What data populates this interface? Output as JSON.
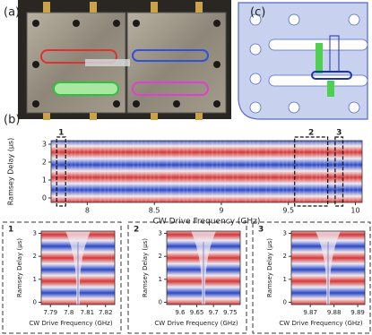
{
  "panels": {
    "a": "(a)",
    "b": "(b)",
    "c": "(c)"
  },
  "chart_data": [
    {
      "type": "heatmap",
      "xlabel": "CW Drive Frequency (GHz)",
      "ylabel": "Ramsey Delay (μs)",
      "xlim": [
        7.73,
        10.05
      ],
      "xticks": [
        8,
        8.5,
        9,
        9.5,
        10
      ],
      "ylim": [
        -0.25,
        3.2
      ],
      "yticks": [
        0,
        1,
        2,
        3
      ]
    },
    {
      "type": "heatmap",
      "label": "1",
      "xlabel": "CW Drive Frequency (GHz)",
      "ylabel": "Ramsey Delay (μs)",
      "xlim": [
        7.785,
        7.825
      ],
      "xticks": [
        7.79,
        7.8,
        7.81,
        7.82
      ],
      "ylim": [
        -0.1,
        3.1
      ],
      "yticks": [
        0,
        1,
        2,
        3
      ]
    },
    {
      "type": "heatmap",
      "label": "2",
      "xlabel": "CW Drive Frequency (GHz)",
      "ylabel": "Ramsey Delay (μs)",
      "xlim": [
        9.56,
        9.78
      ],
      "xticks": [
        9.6,
        9.65,
        9.7,
        9.75
      ],
      "ylim": [
        -0.1,
        3.1
      ],
      "yticks": [
        0,
        1,
        2,
        3
      ]
    },
    {
      "type": "heatmap",
      "label": "3",
      "xlabel": "CW Drive Frequency (GHz)",
      "ylabel": "Ramsey Delay (μs)",
      "xlim": [
        9.862,
        9.893
      ],
      "xticks": [
        9.87,
        9.88,
        9.89
      ],
      "ylim": [
        -0.1,
        3.1
      ],
      "yticks": [
        0,
        1,
        2,
        3
      ]
    }
  ]
}
